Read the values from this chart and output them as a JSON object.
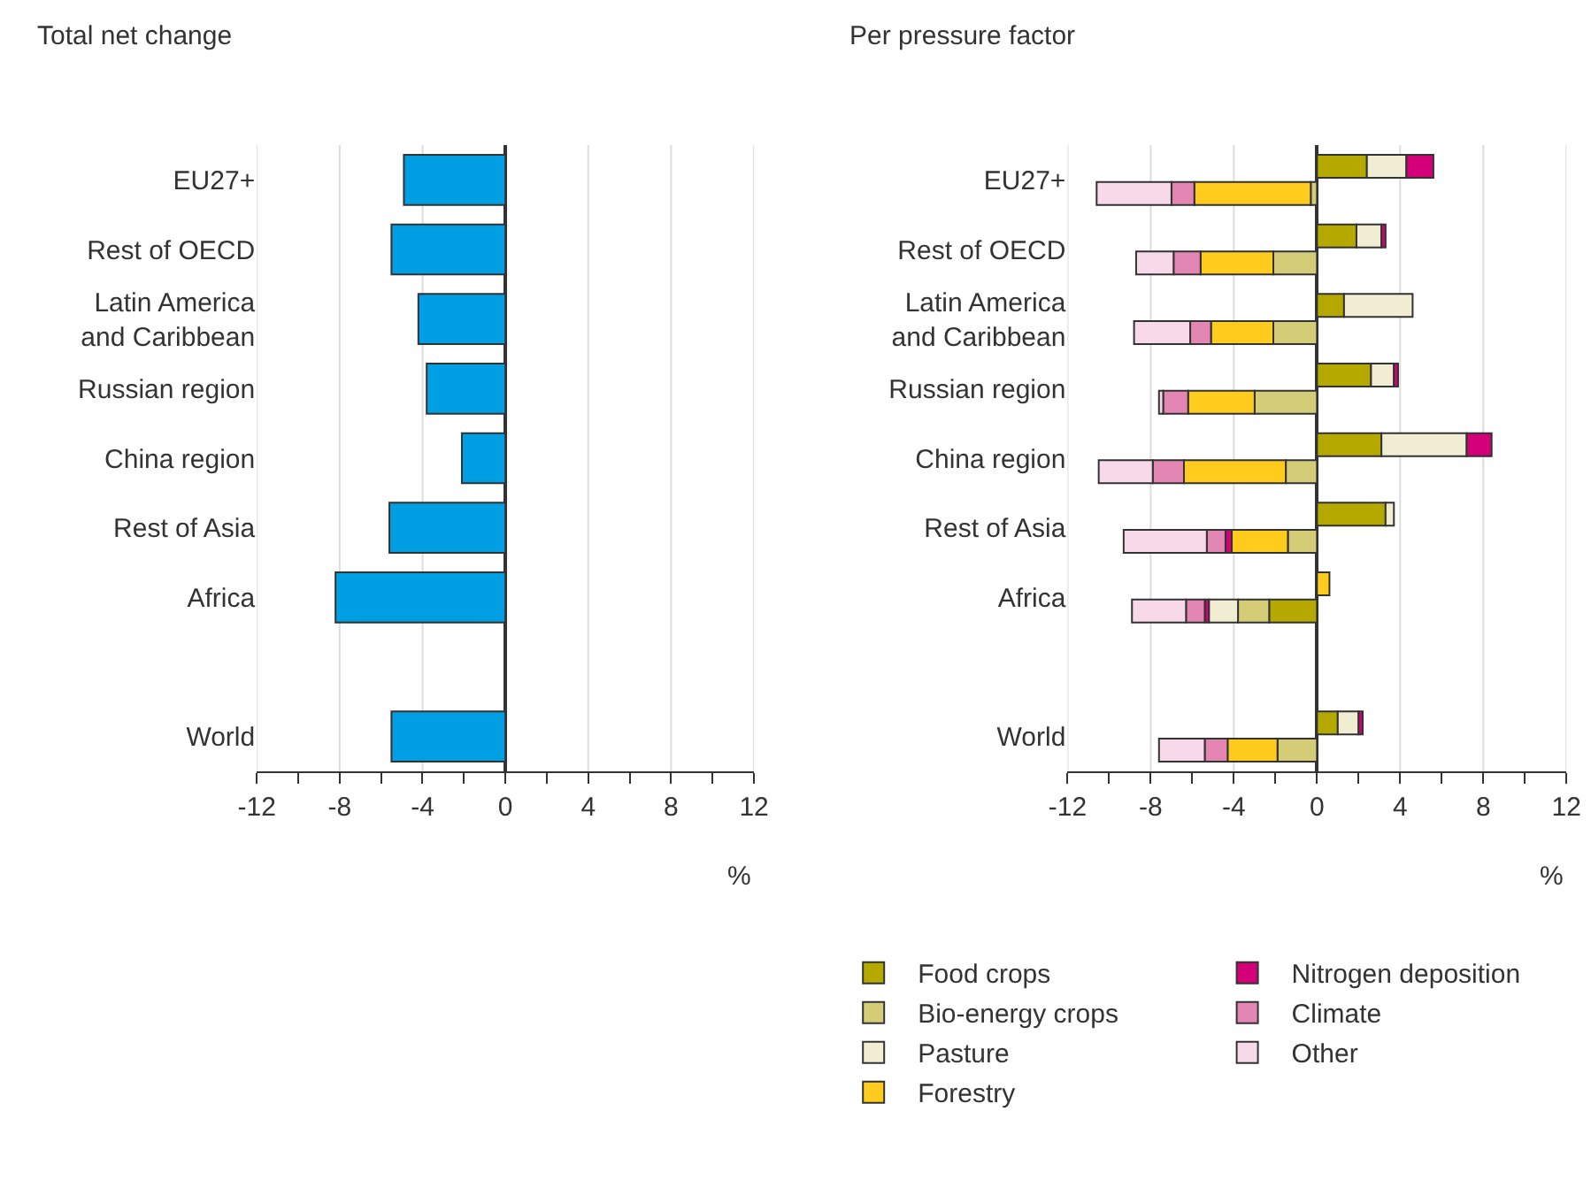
{
  "chart_data": [
    {
      "type": "bar",
      "orientation": "horizontal",
      "title": "Total net change",
      "xlabel": "%",
      "categories": [
        "EU27+",
        "Rest of OECD",
        "Latin America and Caribbean",
        "Russian region",
        "China region",
        "Rest of Asia",
        "Africa",
        null,
        "World"
      ],
      "values": [
        -4.9,
        -5.5,
        -4.2,
        -3.8,
        -2.1,
        -5.6,
        -8.2,
        null,
        -5.5
      ],
      "color": "#009fe3",
      "xlim": [
        -12,
        12
      ],
      "xticks": [
        -12,
        {
          "value": -10,
          "label": null
        },
        -8,
        {
          "value": -6,
          "label": null
        },
        -4,
        {
          "value": -2,
          "label": null
        },
        0,
        {
          "value": 2,
          "label": null
        },
        4,
        {
          "value": 6,
          "label": null
        },
        8,
        {
          "value": 10,
          "label": null
        },
        12
      ],
      "grid": "x"
    },
    {
      "type": "bar",
      "orientation": "horizontal",
      "stacked": true,
      "title": "Per pressure factor",
      "xlabel": "%",
      "categories": [
        "EU27+",
        "Rest of OECD",
        "Latin America and Caribbean",
        "Russian region",
        "China region",
        "Rest of Asia",
        "Africa",
        null,
        "World"
      ],
      "series": [
        {
          "name": "Food crops",
          "color": "#b5a900",
          "values": [
            2.4,
            1.9,
            1.3,
            2.6,
            3.1,
            3.3,
            -2.3,
            null,
            1.0
          ]
        },
        {
          "name": "Bio-energy crops",
          "color": "#d5cc78",
          "values": [
            -0.3,
            -2.1,
            -2.1,
            -3.0,
            -1.5,
            -1.4,
            -1.5,
            null,
            -1.9
          ]
        },
        {
          "name": "Pasture",
          "color": "#f1edd3",
          "values": [
            1.9,
            1.2,
            3.3,
            1.1,
            4.1,
            0.4,
            -1.4,
            null,
            1.0
          ]
        },
        {
          "name": "Forestry",
          "color": "#ffcc1e",
          "values": [
            -5.6,
            -3.5,
            -3.0,
            -3.2,
            -4.9,
            -2.7,
            0.6,
            null,
            -2.4
          ]
        },
        {
          "name": "Nitrogen deposition",
          "color": "#d4007a",
          "values": [
            1.3,
            0.2,
            null,
            0.2,
            1.2,
            -0.3,
            -0.2,
            null,
            0.2
          ]
        },
        {
          "name": "Climate",
          "color": "#e486b4",
          "values": [
            -1.1,
            -1.3,
            -1.0,
            -1.2,
            -1.5,
            -0.9,
            -0.9,
            null,
            -1.1
          ]
        },
        {
          "name": "Other",
          "color": "#f7d9e9",
          "values": [
            -3.6,
            -1.8,
            -2.7,
            -0.2,
            -2.6,
            -4.0,
            -2.6,
            null,
            -2.2
          ]
        }
      ],
      "xlim": [
        -12,
        12
      ],
      "xticks": [
        -12,
        {
          "value": -10,
          "label": null
        },
        -8,
        {
          "value": -6,
          "label": null
        },
        -4,
        {
          "value": -2,
          "label": null
        },
        0,
        {
          "value": 2,
          "label": null
        },
        4,
        {
          "value": 6,
          "label": null
        },
        8,
        {
          "value": 10,
          "label": null
        },
        12
      ],
      "grid": "x",
      "legend": "bottom"
    }
  ]
}
